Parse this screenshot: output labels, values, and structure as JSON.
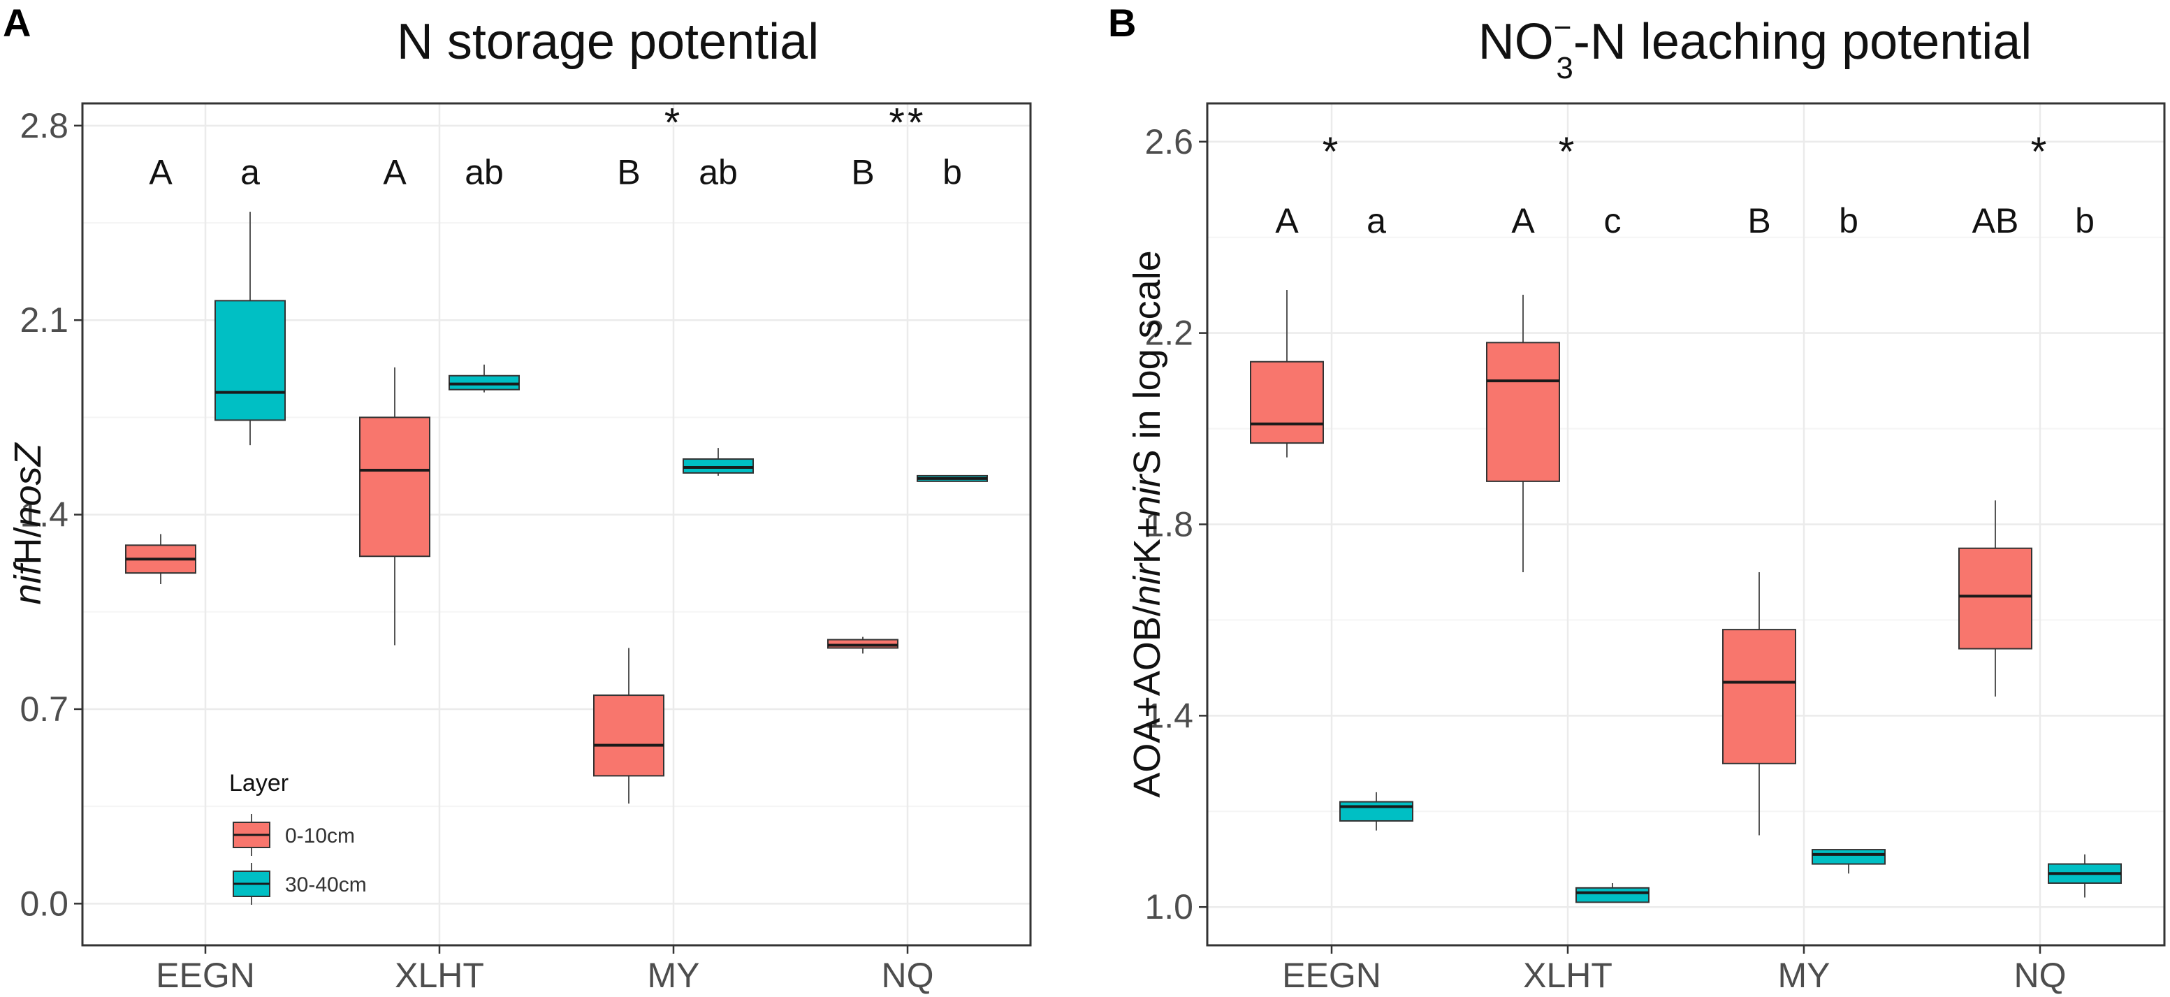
{
  "chart_data": [
    {
      "type": "box",
      "panel_label": "A",
      "title": "N storage potential",
      "ylabel": {
        "italic1": "nif",
        "normal1": "H/",
        "italic2": "nosZ",
        "normal2": ""
      },
      "ylim": [
        -0.15,
        2.88
      ],
      "yticks": [
        0.0,
        0.7,
        1.4,
        2.1,
        2.8
      ],
      "ytick_labels": [
        "0.0",
        "0.7",
        "1.4",
        "2.1",
        "2.8"
      ],
      "categories": [
        "EEGN",
        "XLHT",
        "MY",
        "NQ"
      ],
      "letter_y": 2.59,
      "star_y": 2.76,
      "legend": {
        "title": "Layer",
        "entries": [
          "0-10cm",
          "30-40cm"
        ],
        "placement": "bottom-left"
      },
      "series": [
        {
          "name": "0-10cm",
          "color": "#f8766d",
          "boxes": [
            {
              "category": "EEGN",
              "whisker_low": 1.15,
              "q1": 1.19,
              "median": 1.24,
              "q3": 1.29,
              "whisker_high": 1.33,
              "letter": "A",
              "star": ""
            },
            {
              "category": "XLHT",
              "whisker_low": 0.93,
              "q1": 1.25,
              "median": 1.56,
              "q3": 1.75,
              "whisker_high": 1.93,
              "letter": "A",
              "star": ""
            },
            {
              "category": "MY",
              "whisker_low": 0.36,
              "q1": 0.46,
              "median": 0.57,
              "q3": 0.75,
              "whisker_high": 0.92,
              "letter": "B",
              "star": ""
            },
            {
              "category": "NQ",
              "whisker_low": 0.9,
              "q1": 0.92,
              "median": 0.93,
              "q3": 0.95,
              "whisker_high": 0.96,
              "letter": "B",
              "star": ""
            }
          ]
        },
        {
          "name": "30-40cm",
          "color": "#00bfc4",
          "boxes": [
            {
              "category": "EEGN",
              "whisker_low": 1.65,
              "q1": 1.74,
              "median": 1.84,
              "q3": 2.17,
              "whisker_high": 2.49,
              "letter": "a",
              "star": ""
            },
            {
              "category": "XLHT",
              "whisker_low": 1.84,
              "q1": 1.85,
              "median": 1.87,
              "q3": 1.9,
              "whisker_high": 1.94,
              "letter": "ab",
              "star": ""
            },
            {
              "category": "MY",
              "whisker_low": 1.54,
              "q1": 1.55,
              "median": 1.57,
              "q3": 1.6,
              "whisker_high": 1.64,
              "letter": "ab",
              "star": "*"
            },
            {
              "category": "NQ",
              "whisker_low": 1.52,
              "q1": 1.52,
              "median": 1.53,
              "q3": 1.54,
              "whisker_high": 1.54,
              "letter": "b",
              "star": "**"
            }
          ]
        }
      ]
    },
    {
      "type": "box",
      "panel_label": "B",
      "title": {
        "pre": "NO",
        "sub": "3",
        "sup": "−",
        "post": "-N leaching potential"
      },
      "ylabel": {
        "normal1": "AOA+AOB/",
        "italic1": "nir",
        "normal2": "K+",
        "italic2": "nir",
        "normal3": "S in log scale"
      },
      "ylim": [
        0.92,
        2.68
      ],
      "yticks": [
        1.0,
        1.4,
        1.8,
        2.2,
        2.6
      ],
      "ytick_labels": [
        "1.0",
        "1.4",
        "1.8",
        "2.2",
        "2.6"
      ],
      "categories": [
        "EEGN",
        "XLHT",
        "MY",
        "NQ"
      ],
      "letter_y": 2.41,
      "star_y": 2.55,
      "series": [
        {
          "name": "0-10cm",
          "color": "#f8766d",
          "boxes": [
            {
              "category": "EEGN",
              "whisker_low": 1.94,
              "q1": 1.97,
              "median": 2.01,
              "q3": 2.14,
              "whisker_high": 2.29,
              "letter": "A",
              "star": "*"
            },
            {
              "category": "XLHT",
              "whisker_low": 1.7,
              "q1": 1.89,
              "median": 2.1,
              "q3": 2.18,
              "whisker_high": 2.28,
              "letter": "A",
              "star": "*"
            },
            {
              "category": "MY",
              "whisker_low": 1.15,
              "q1": 1.3,
              "median": 1.47,
              "q3": 1.58,
              "whisker_high": 1.7,
              "letter": "B",
              "star": ""
            },
            {
              "category": "NQ",
              "whisker_low": 1.44,
              "q1": 1.54,
              "median": 1.65,
              "q3": 1.75,
              "whisker_high": 1.85,
              "letter": "AB",
              "star": "*"
            }
          ]
        },
        {
          "name": "30-40cm",
          "color": "#00bfc4",
          "boxes": [
            {
              "category": "EEGN",
              "whisker_low": 1.16,
              "q1": 1.18,
              "median": 1.21,
              "q3": 1.22,
              "whisker_high": 1.24,
              "letter": "a",
              "star": ""
            },
            {
              "category": "XLHT",
              "whisker_low": 1.01,
              "q1": 1.01,
              "median": 1.03,
              "q3": 1.04,
              "whisker_high": 1.05,
              "letter": "c",
              "star": ""
            },
            {
              "category": "MY",
              "whisker_low": 1.07,
              "q1": 1.09,
              "median": 1.11,
              "q3": 1.12,
              "whisker_high": 1.12,
              "letter": "b",
              "star": ""
            },
            {
              "category": "NQ",
              "whisker_low": 1.02,
              "q1": 1.05,
              "median": 1.07,
              "q3": 1.09,
              "whisker_high": 1.11,
              "letter": "b",
              "star": ""
            }
          ]
        }
      ]
    }
  ]
}
